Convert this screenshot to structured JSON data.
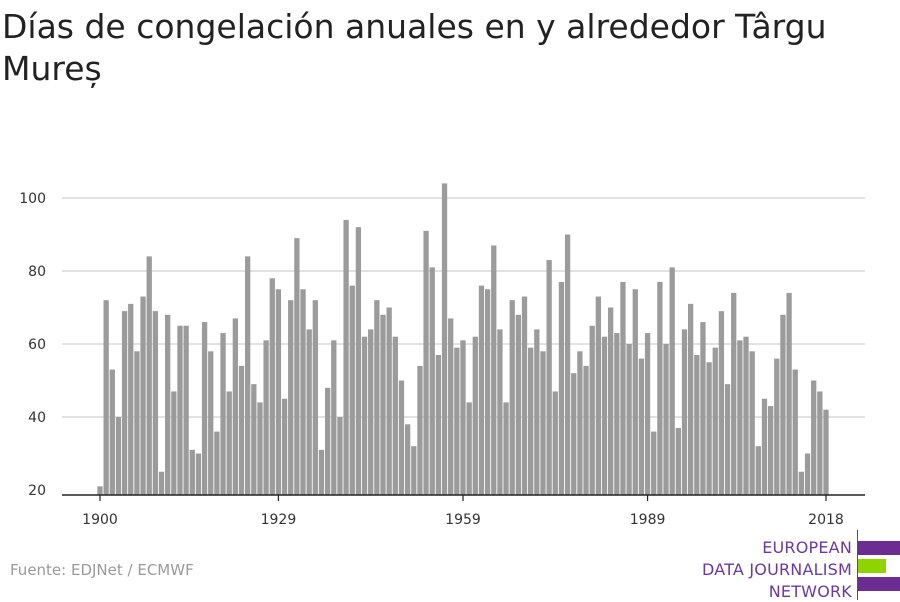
{
  "title": "Días de congelación anuales en y alrededor Târgu Mureș",
  "source": "Fuente: EDJNet / ECMWF",
  "logo": {
    "lines": [
      "EUROPEAN",
      "DATA JOURNALISM",
      "NETWORK"
    ],
    "colors": {
      "purple": "#6b2d91",
      "green": "#8fd400"
    }
  },
  "colors": {
    "bar": "#9b9b9b",
    "grid": "#d9d9d9",
    "axis": "#222222"
  },
  "chart_data": {
    "type": "bar",
    "title": "Días de congelación anuales en y alrededor Târgu Mureș",
    "xlabel": "",
    "ylabel": "",
    "x_ticks": [
      1900,
      1929,
      1959,
      1989,
      2018
    ],
    "y_ticks": [
      20,
      40,
      60,
      80,
      100
    ],
    "ylim": [
      18,
      105
    ],
    "grid": true,
    "categories": [
      1900,
      1901,
      1902,
      1903,
      1904,
      1905,
      1906,
      1907,
      1908,
      1909,
      1910,
      1911,
      1912,
      1913,
      1914,
      1915,
      1916,
      1917,
      1918,
      1919,
      1920,
      1921,
      1922,
      1923,
      1924,
      1925,
      1926,
      1927,
      1928,
      1929,
      1930,
      1931,
      1932,
      1933,
      1934,
      1935,
      1936,
      1937,
      1938,
      1939,
      1940,
      1941,
      1942,
      1943,
      1944,
      1945,
      1946,
      1947,
      1948,
      1949,
      1950,
      1951,
      1952,
      1953,
      1954,
      1955,
      1956,
      1957,
      1958,
      1959,
      1960,
      1961,
      1962,
      1963,
      1964,
      1965,
      1966,
      1967,
      1968,
      1969,
      1970,
      1971,
      1972,
      1973,
      1974,
      1975,
      1976,
      1977,
      1978,
      1979,
      1980,
      1981,
      1982,
      1983,
      1984,
      1985,
      1986,
      1987,
      1988,
      1989,
      1990,
      1991,
      1992,
      1993,
      1994,
      1995,
      1996,
      1997,
      1998,
      1999,
      2000,
      2001,
      2002,
      2003,
      2004,
      2005,
      2006,
      2007,
      2008,
      2009,
      2010,
      2011,
      2012,
      2013,
      2014,
      2015,
      2016,
      2017,
      2018
    ],
    "values": [
      21,
      72,
      53,
      40,
      69,
      71,
      58,
      73,
      84,
      69,
      25,
      68,
      47,
      65,
      65,
      31,
      30,
      66,
      58,
      36,
      63,
      47,
      67,
      54,
      84,
      49,
      44,
      61,
      78,
      75,
      45,
      72,
      89,
      75,
      64,
      72,
      31,
      48,
      61,
      40,
      94,
      76,
      92,
      62,
      64,
      72,
      68,
      70,
      62,
      50,
      38,
      32,
      54,
      91,
      81,
      57,
      104,
      67,
      59,
      61,
      44,
      62,
      76,
      75,
      87,
      64,
      44,
      72,
      68,
      73,
      59,
      64,
      58,
      83,
      47,
      77,
      90,
      52,
      58,
      54,
      65,
      73,
      62,
      70,
      63,
      77,
      60,
      75,
      56,
      63,
      36,
      77,
      60,
      81,
      37,
      64,
      71,
      57,
      66,
      55,
      59,
      69,
      49,
      74,
      61,
      62,
      58,
      32,
      45,
      43,
      56,
      68,
      74,
      53,
      25,
      30,
      50,
      47,
      42
    ]
  }
}
